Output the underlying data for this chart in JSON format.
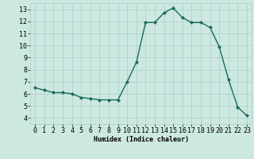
{
  "x": [
    0,
    1,
    2,
    3,
    4,
    5,
    6,
    7,
    8,
    9,
    10,
    11,
    12,
    13,
    14,
    15,
    16,
    17,
    18,
    19,
    20,
    21,
    22,
    23
  ],
  "y": [
    6.5,
    6.3,
    6.1,
    6.1,
    6.0,
    5.7,
    5.6,
    5.5,
    5.5,
    5.5,
    7.0,
    8.6,
    11.9,
    11.9,
    12.7,
    13.1,
    12.3,
    11.9,
    11.9,
    11.5,
    9.9,
    7.2,
    4.9,
    4.2
  ],
  "line_color": "#1a6b5a",
  "marker": "D",
  "marker_size": 2,
  "linewidth": 1.0,
  "xlabel": "Humidex (Indice chaleur)",
  "xlim": [
    -0.5,
    23.5
  ],
  "ylim": [
    3.5,
    13.5
  ],
  "yticks": [
    4,
    5,
    6,
    7,
    8,
    9,
    10,
    11,
    12,
    13
  ],
  "xticks": [
    0,
    1,
    2,
    3,
    4,
    5,
    6,
    7,
    8,
    9,
    10,
    11,
    12,
    13,
    14,
    15,
    16,
    17,
    18,
    19,
    20,
    21,
    22,
    23
  ],
  "background_color": "#cce8e0",
  "grid_color": "#aacfc8",
  "label_fontsize": 6,
  "tick_fontsize": 6
}
